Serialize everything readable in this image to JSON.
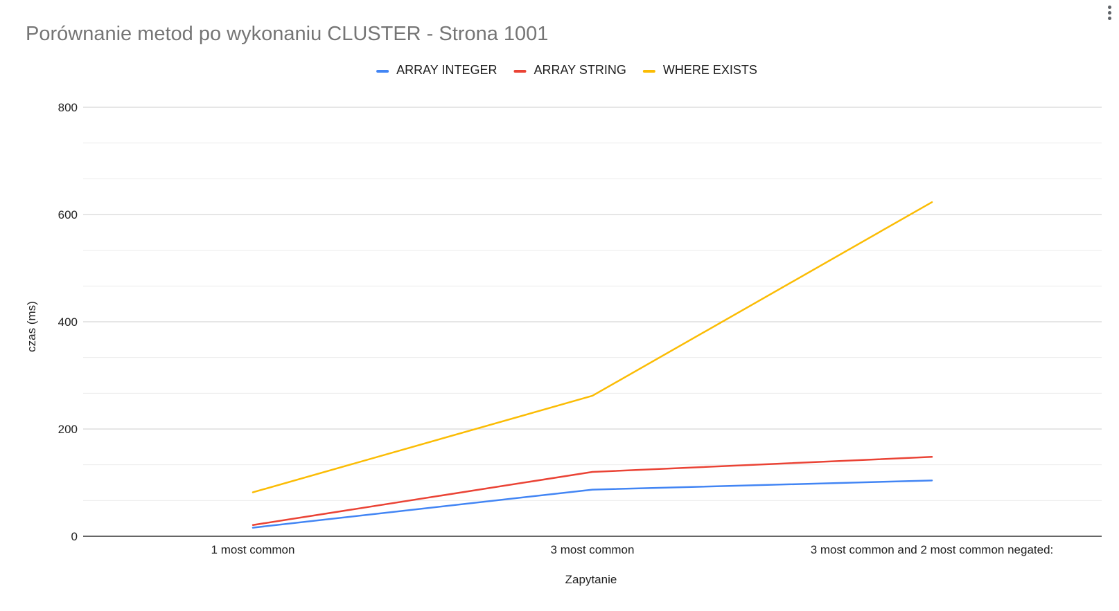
{
  "chart_data": {
    "type": "line",
    "title": "Porównanie metod po wykonaniu CLUSTER - Strona 1001",
    "xlabel": "Zapytanie",
    "ylabel": "czas (ms)",
    "categories": [
      "1 most common",
      "3 most common",
      "3 most common and 2 most common negated:"
    ],
    "ylim": [
      0,
      800
    ],
    "yticks": [
      0,
      200,
      400,
      600,
      800
    ],
    "grid": true,
    "legend_position": "top",
    "series": [
      {
        "name": "ARRAY INTEGER",
        "color": "#4285f4",
        "values": [
          16,
          87,
          104
        ]
      },
      {
        "name": "ARRAY STRING",
        "color": "#ea4335",
        "values": [
          21,
          120,
          148
        ]
      },
      {
        "name": "WHERE EXISTS",
        "color": "#fbbc04",
        "values": [
          82,
          262,
          623
        ]
      }
    ]
  },
  "ui": {
    "menu_icon": "more-vert-icon"
  }
}
